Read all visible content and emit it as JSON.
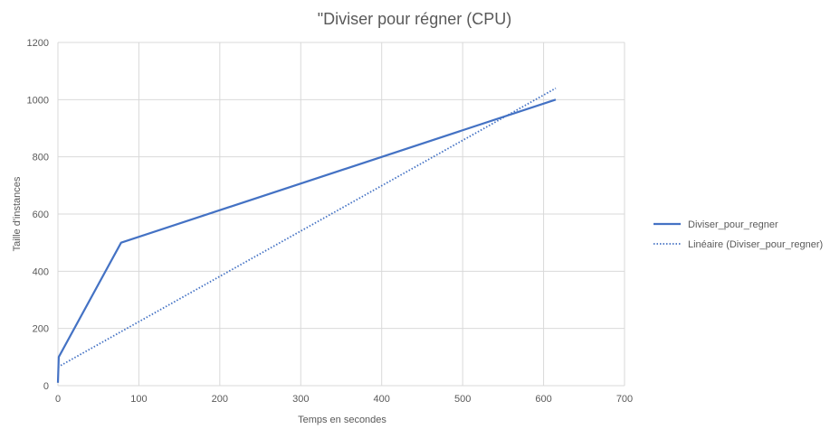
{
  "chart_data": {
    "type": "scatter",
    "title": "\"Diviser pour régner (CPU)",
    "xlabel": "Temps en secondes",
    "ylabel": "Taille d'instances",
    "xlim": [
      0,
      700
    ],
    "ylim": [
      0,
      1200
    ],
    "x_ticks": [
      "0",
      "100",
      "200",
      "300",
      "400",
      "500",
      "600",
      "700"
    ],
    "y_ticks": [
      "0",
      "200",
      "400",
      "600",
      "800",
      "1000",
      "1200"
    ],
    "grid": true,
    "legend_position": "right",
    "series": [
      {
        "name": "Diviser_pour_regner",
        "style": "solid",
        "color": "#4472c4",
        "x": [
          0,
          1,
          78,
          615
        ],
        "y": [
          10,
          100,
          500,
          1000
        ]
      },
      {
        "name": "Linéaire (Diviser_pour_regner)",
        "style": "dotted",
        "color": "#4472c4",
        "x": [
          0,
          615
        ],
        "y": [
          65,
          1040
        ]
      }
    ]
  }
}
